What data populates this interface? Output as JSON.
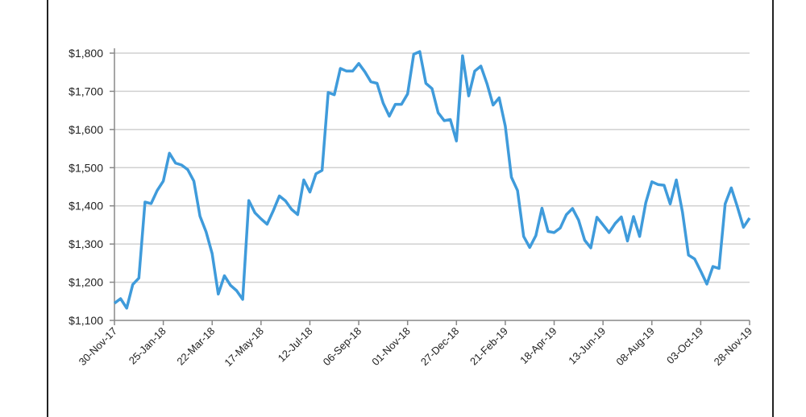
{
  "chart_data": {
    "type": "line",
    "title": "",
    "xlabel": "",
    "ylabel": "",
    "ylim": [
      1100,
      1800
    ],
    "y_ticks": [
      "$1,100",
      "$1,200",
      "$1,300",
      "$1,400",
      "$1,500",
      "$1,600",
      "$1,700",
      "$1,800"
    ],
    "y_tick_values": [
      1100,
      1200,
      1300,
      1400,
      1500,
      1600,
      1700,
      1800
    ],
    "x_ticks": [
      "30-Nov-17",
      "25-Jan-18",
      "22-Mar-18",
      "17-May-18",
      "12-Jul-18",
      "06-Sep-18",
      "01-Nov-18",
      "27-Dec-18",
      "21-Feb-19",
      "18-Apr-19",
      "13-Jun-19",
      "08-Aug-19",
      "03-Oct-19",
      "28-Nov-19"
    ],
    "x_range": [
      "30-Nov-17",
      "28-Nov-19"
    ],
    "frequency": "weekly",
    "grid": "horizontal",
    "legend": "none",
    "line_color": "#3f9bdb",
    "values": [
      1145,
      1157,
      1132,
      1194,
      1211,
      1410,
      1406,
      1440,
      1465,
      1538,
      1512,
      1507,
      1495,
      1465,
      1373,
      1332,
      1275,
      1169,
      1217,
      1192,
      1178,
      1155,
      1414,
      1382,
      1366,
      1352,
      1387,
      1426,
      1413,
      1391,
      1377,
      1468,
      1436,
      1484,
      1493,
      1697,
      1691,
      1760,
      1753,
      1753,
      1773,
      1751,
      1725,
      1721,
      1669,
      1635,
      1666,
      1666,
      1693,
      1797,
      1804,
      1721,
      1707,
      1644,
      1623,
      1626,
      1570,
      1793,
      1688,
      1753,
      1766,
      1720,
      1664,
      1683,
      1609,
      1475,
      1440,
      1320,
      1291,
      1322,
      1394,
      1333,
      1330,
      1342,
      1377,
      1393,
      1363,
      1310,
      1290,
      1370,
      1350,
      1330,
      1354,
      1371,
      1308,
      1372,
      1320,
      1408,
      1463,
      1456,
      1454,
      1405,
      1468,
      1384,
      1271,
      1261,
      1229,
      1195,
      1241,
      1236,
      1405,
      1447,
      1398,
      1344,
      1368
    ]
  }
}
